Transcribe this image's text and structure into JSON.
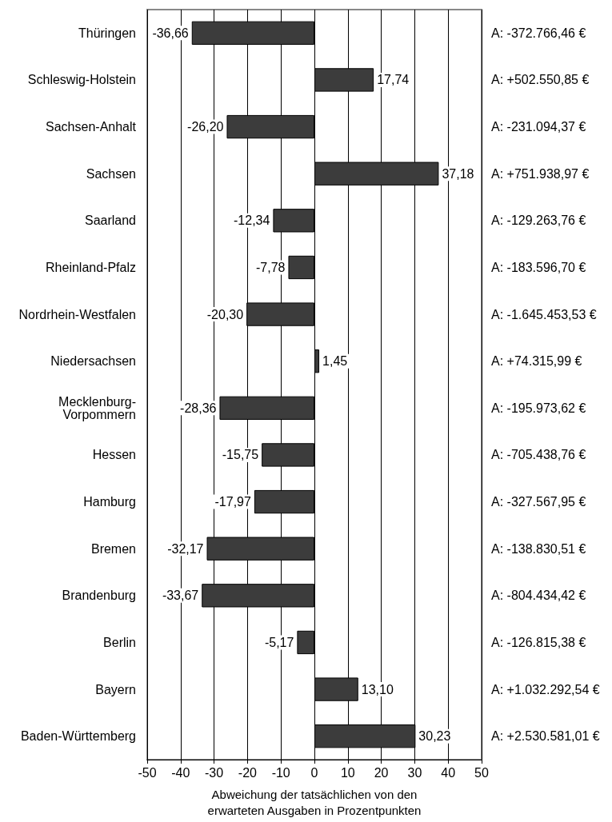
{
  "chart_data": {
    "type": "bar",
    "orientation": "horizontal",
    "xlabel": "Abweichung der tatsächlichen von den erwarteten Ausgaben in Prozentpunkten",
    "categories": [
      "Thüringen",
      "Schleswig-Holstein",
      "Sachsen-Anhalt",
      "Sachsen",
      "Saarland",
      "Rheinland-Pfalz",
      "Nordrhein-Westfalen",
      "Niedersachsen",
      "Mecklenburg-Vorpommern",
      "Hessen",
      "Hamburg",
      "Bremen",
      "Brandenburg",
      "Berlin",
      "Bayern",
      "Baden-Württemberg"
    ],
    "values": [
      -36.66,
      17.74,
      -26.2,
      37.18,
      -12.34,
      -7.78,
      -20.3,
      1.45,
      -28.36,
      -15.75,
      -17.97,
      -32.17,
      -33.67,
      -5.17,
      13.1,
      30.23
    ],
    "value_labels": [
      "-36,66",
      "17,74",
      "-26,20",
      "37,18",
      "-12,34",
      "-7,78",
      "-20,30",
      "1,45",
      "-28,36",
      "-15,75",
      "-17,97",
      "-32,17",
      "-33,67",
      "-5,17",
      "13,10",
      "30,23"
    ],
    "color": "#3c3c3c",
    "xlim": [
      -50,
      50
    ],
    "xticks": [
      -50,
      -40,
      -30,
      -20,
      -10,
      0,
      10,
      20,
      30,
      40,
      50
    ],
    "grid": "x",
    "annotations": [
      "A: -372.766,46 €",
      "A: +502.550,85 €",
      "A: -231.094,37 €",
      "A: +751.938,97 €",
      "A: -129.263,76 €",
      "A: -183.596,70 €",
      "A: -1.645.453,53 €",
      "A: +74.315,99 €",
      "A: -195.973,62 €",
      "A: -705.438,76 €",
      "A: -327.567,95 €",
      "A: -138.830,51 €",
      "A: -804.434,42 €",
      "A: -126.815,38 €",
      "A: +1.032.292,54 €",
      "A: +2.530.581,01 €"
    ]
  }
}
